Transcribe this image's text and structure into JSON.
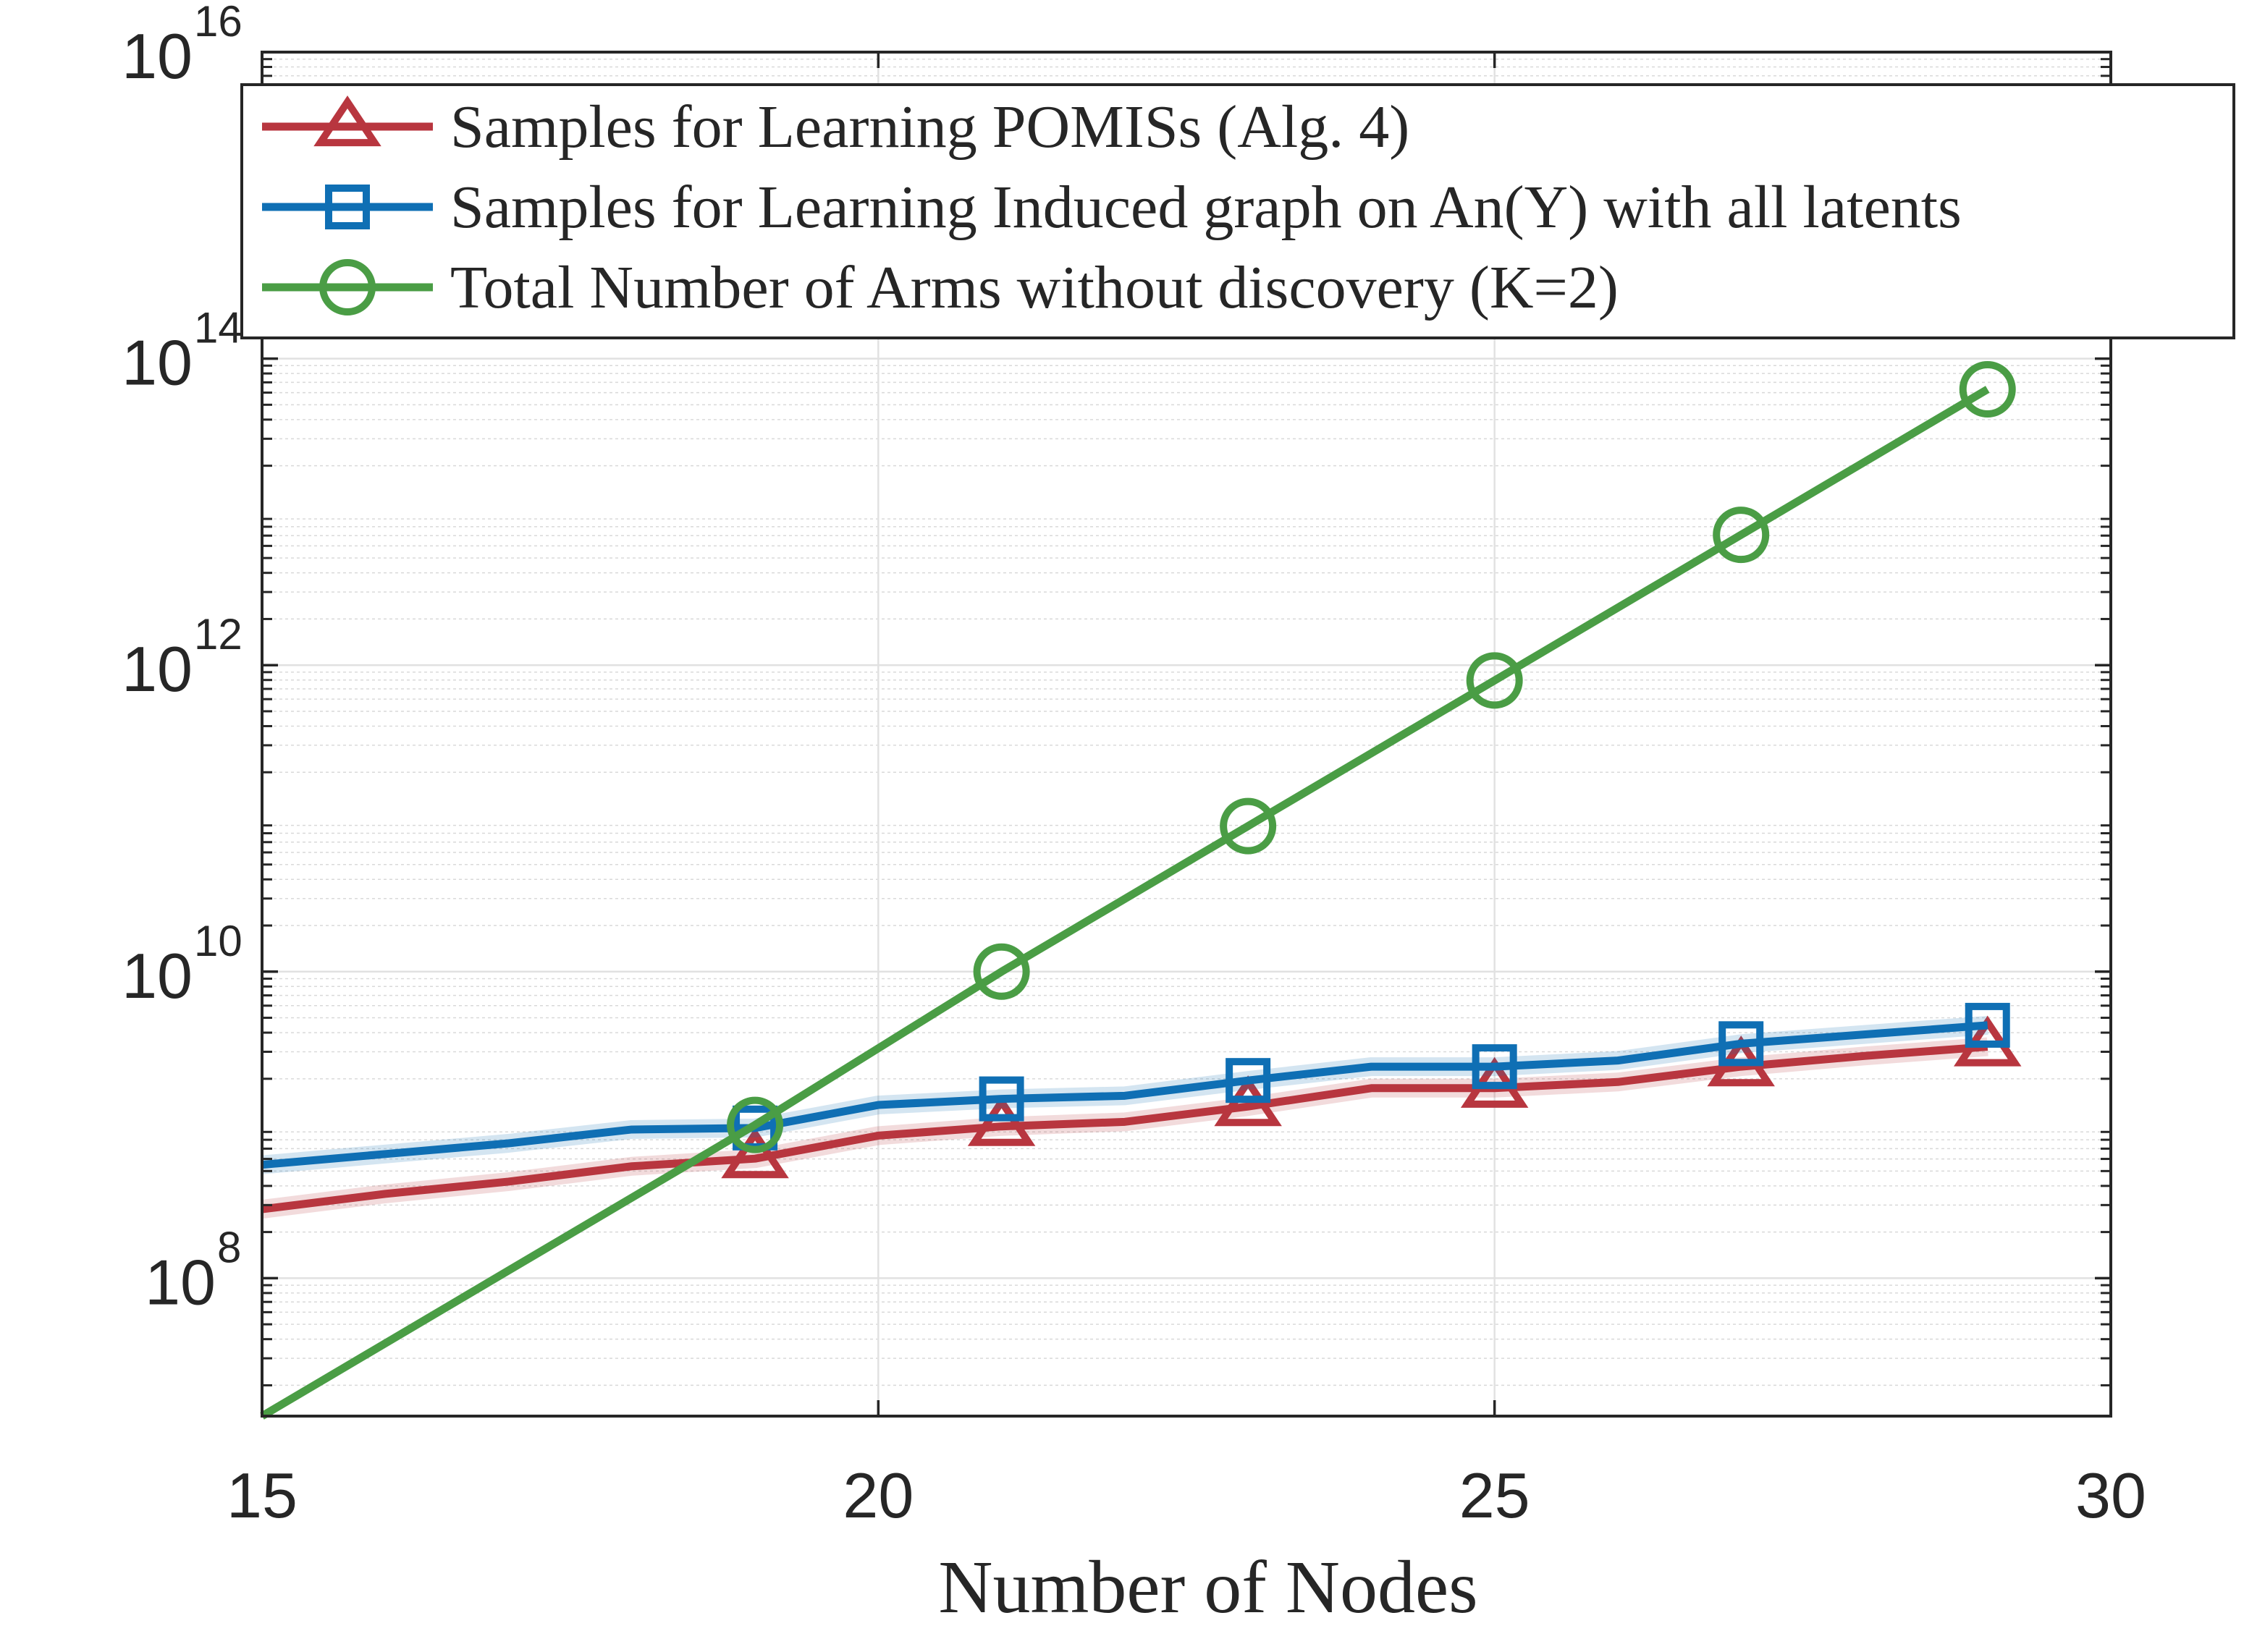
{
  "chart_data": {
    "type": "line",
    "title": "",
    "xlabel": "Number of Nodes",
    "ylabel": "",
    "yscale": "log",
    "xlim": [
      15,
      30
    ],
    "ylim_exp": [
      7.1,
      16
    ],
    "xticks": [
      15,
      20,
      25,
      30
    ],
    "yticks": [
      {
        "base": "10",
        "exp": "8",
        "value_exp": 8
      },
      {
        "base": "10",
        "exp": "10",
        "value_exp": 10
      },
      {
        "base": "10",
        "exp": "12",
        "value_exp": 12
      },
      {
        "base": "10",
        "exp": "14",
        "value_exp": 14
      },
      {
        "base": "10",
        "exp": "16",
        "value_exp": 16
      }
    ],
    "grid": true,
    "legend_position": "top",
    "series": [
      {
        "name": "Samples for Learning POMISs (Alg. 4)",
        "color": "#b8363f",
        "marker": "triangle",
        "x": [
          15,
          16,
          17,
          18,
          19,
          20,
          21,
          22,
          23,
          24,
          25,
          26,
          27,
          28,
          29
        ],
        "log10_y": [
          8.45,
          8.55,
          8.63,
          8.73,
          8.78,
          8.93,
          8.99,
          9.02,
          9.12,
          9.24,
          9.24,
          9.28,
          9.38,
          9.45,
          9.51
        ],
        "marker_x": [
          19,
          21,
          23,
          25,
          27,
          29
        ]
      },
      {
        "name": "Samples for Learning Induced graph on An(Y) with all latents",
        "color": "#0f6fb4",
        "marker": "square",
        "x": [
          15,
          16,
          17,
          18,
          19,
          20,
          21,
          22,
          23,
          24,
          25,
          26,
          27,
          28,
          29
        ],
        "log10_y": [
          8.74,
          8.81,
          8.88,
          8.97,
          8.98,
          9.13,
          9.17,
          9.19,
          9.29,
          9.38,
          9.38,
          9.42,
          9.53,
          9.59,
          9.65
        ],
        "marker_x": [
          19,
          21,
          23,
          25,
          27,
          29
        ]
      },
      {
        "name": "Total Number of Arms without discovery (K=2)",
        "color": "#4a9d45",
        "marker": "circle",
        "x": [
          15,
          17,
          19,
          21,
          23,
          25,
          27,
          29
        ],
        "log10_y": [
          7.1,
          8.05,
          9.0,
          10.0,
          10.95,
          11.9,
          12.85,
          13.8
        ],
        "marker_x": [
          19,
          21,
          23,
          25,
          27,
          29
        ]
      }
    ]
  }
}
